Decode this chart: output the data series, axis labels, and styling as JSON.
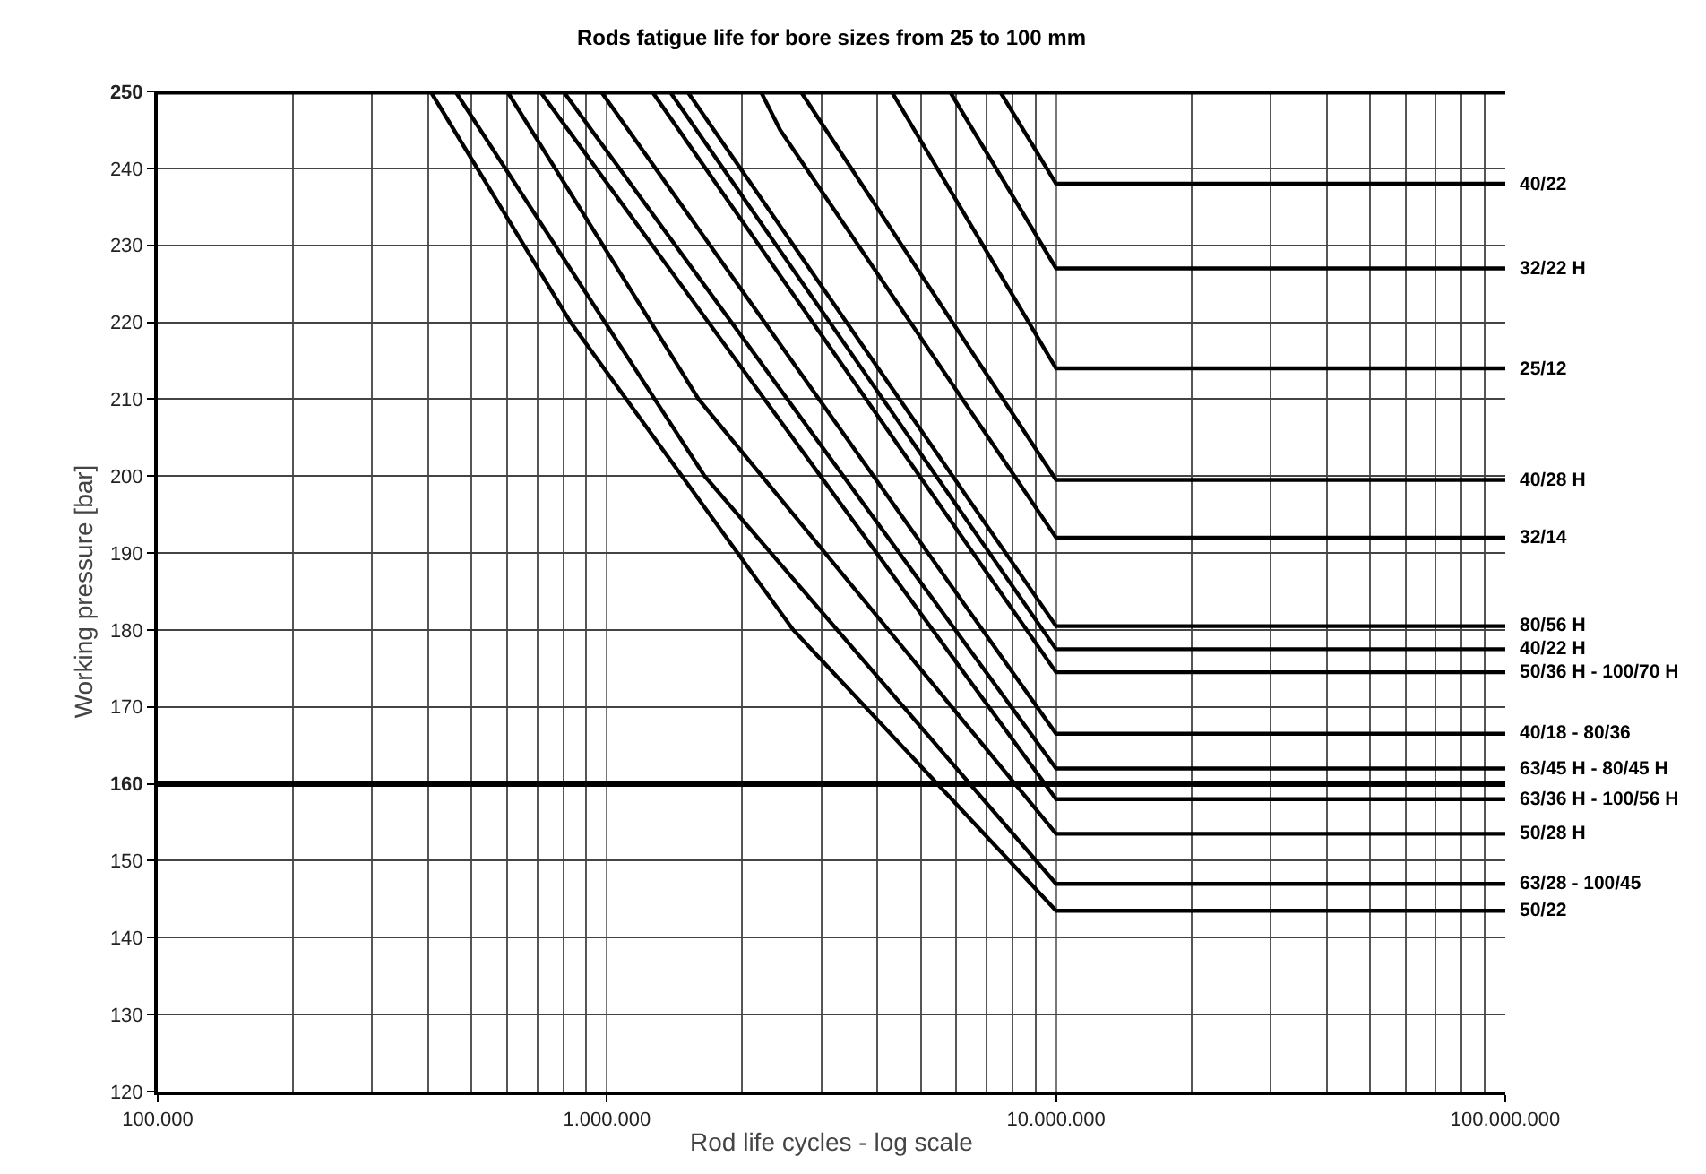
{
  "chart_data": {
    "type": "line",
    "title": "Rods fatigue life for bore sizes from 25 to 100 mm",
    "xlabel": "Rod life cycles - log scale",
    "ylabel": "Working pressure [bar]",
    "log": "x",
    "xlim": [
      100000,
      100000000
    ],
    "xticks": [
      {
        "value": 100000,
        "label": "100.000"
      },
      {
        "value": 1000000,
        "label": "1.000.000"
      },
      {
        "value": 10000000,
        "label": "10.000.000"
      },
      {
        "value": 100000000,
        "label": "100.000.000"
      }
    ],
    "ylim": [
      120,
      250
    ],
    "yticks": [
      120,
      130,
      140,
      150,
      160,
      170,
      180,
      190,
      200,
      210,
      220,
      230,
      240,
      250
    ],
    "grid": true,
    "legend": false,
    "marker": "none",
    "line_style": "solid",
    "ref_lines": [
      {
        "axis": "y",
        "value": 250,
        "color": "#000000"
      },
      {
        "axis": "y",
        "value": 160,
        "color": "#000000"
      }
    ],
    "series": [
      {
        "name": "40/22",
        "color": "#000000",
        "x": [
          7500000,
          10000000,
          100000000
        ],
        "values": [
          250,
          238,
          238
        ]
      },
      {
        "name": "32/22 H",
        "color": "#000000",
        "x": [
          5800000,
          10000000,
          100000000
        ],
        "values": [
          250,
          227,
          227
        ]
      },
      {
        "name": "25/12",
        "color": "#000000",
        "x": [
          4300000,
          10000000,
          100000000
        ],
        "values": [
          250,
          214,
          214
        ]
      },
      {
        "name": "40/28 H",
        "color": "#000000",
        "x": [
          2700000,
          10000000,
          100000000
        ],
        "values": [
          250,
          199.5,
          199.5
        ]
      },
      {
        "name": "32/14",
        "color": "#000000",
        "x": [
          2200000,
          2430000,
          10000000,
          100000000
        ],
        "values": [
          250,
          245,
          192,
          192
        ]
      },
      {
        "name": "80/56 H",
        "color": "#000000",
        "x": [
          1510000,
          10000000,
          100000000
        ],
        "values": [
          250,
          180.5,
          180.5
        ]
      },
      {
        "name": "40/22 H",
        "color": "#000000",
        "x": [
          1380000,
          10000000,
          100000000
        ],
        "values": [
          250,
          177.5,
          177.5
        ]
      },
      {
        "name": "50/36 H - 100/70 H",
        "color": "#000000",
        "x": [
          1260000,
          10000000,
          100000000
        ],
        "values": [
          250,
          174.5,
          174.5
        ]
      },
      {
        "name": "40/18 - 80/36",
        "color": "#000000",
        "x": [
          970000,
          10000000,
          100000000
        ],
        "values": [
          250,
          166.5,
          166.5
        ]
      },
      {
        "name": "63/45 H - 80/45 H",
        "color": "#000000",
        "x": [
          800000,
          10000000,
          100000000
        ],
        "values": [
          250,
          162,
          162
        ]
      },
      {
        "name": "63/36 H - 100/56 H",
        "color": "#000000",
        "x": [
          710000,
          10000000,
          100000000
        ],
        "values": [
          250,
          158,
          158
        ]
      },
      {
        "name": "50/28 H",
        "color": "#000000",
        "x": [
          600000,
          1600000,
          10000000,
          100000000
        ],
        "values": [
          250,
          210,
          153.5,
          153.5
        ]
      },
      {
        "name": "63/28 - 100/45",
        "color": "#000000",
        "x": [
          460000,
          1650000,
          10000000,
          100000000
        ],
        "values": [
          250,
          200,
          147,
          147
        ]
      },
      {
        "name": "50/22",
        "color": "#000000",
        "x": [
          405000,
          830000,
          2600000,
          10000000,
          100000000
        ],
        "values": [
          250,
          220,
          180,
          143.5,
          143.5
        ]
      }
    ]
  }
}
